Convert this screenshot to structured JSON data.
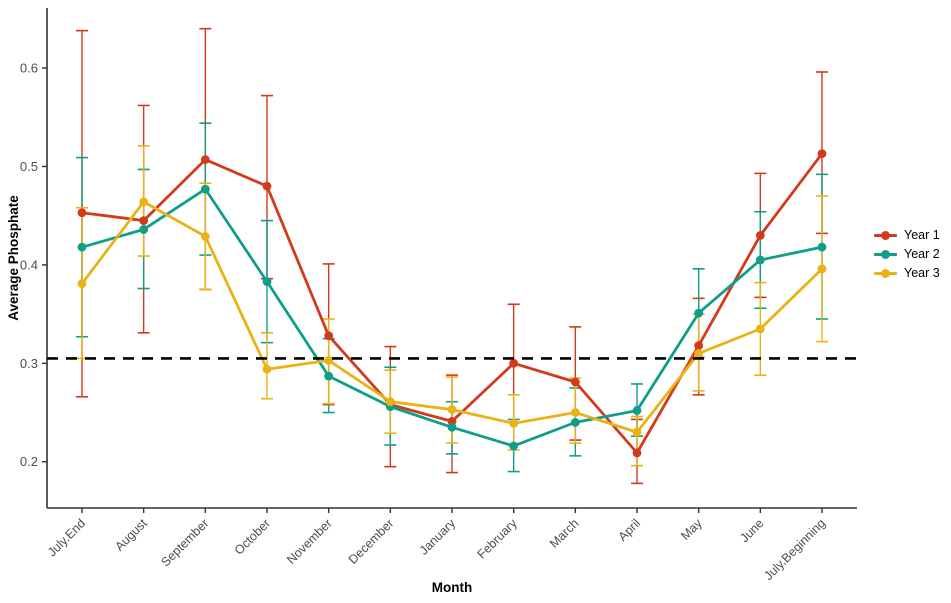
{
  "chart_data": {
    "type": "line",
    "title": "",
    "xlabel": "Month",
    "ylabel": "Average Phosphate",
    "categories": [
      "July.End",
      "August",
      "September",
      "October",
      "November",
      "December",
      "January",
      "February",
      "March",
      "April",
      "May",
      "June",
      "July.Beginning"
    ],
    "y_ticks": [
      0.2,
      0.3,
      0.4,
      0.5,
      0.6
    ],
    "ylim": [
      0.153,
      0.661
    ],
    "grid": false,
    "legend_position": "right",
    "reference_line": {
      "y": 0.305,
      "style": "dashed",
      "color": "#000000"
    },
    "axis_color": "#333333",
    "tick_label_color": "#4d4d4d",
    "series": [
      {
        "name": "Year 1",
        "color": "#d23a1c",
        "values": [
          0.453,
          0.445,
          0.507,
          0.48,
          0.328,
          0.258,
          0.241,
          0.3,
          0.281,
          0.209,
          0.318,
          0.43,
          0.513
        ],
        "err_low": [
          0.266,
          0.331,
          0.375,
          0.386,
          0.258,
          0.195,
          0.189,
          0.24,
          0.222,
          0.178,
          0.268,
          0.367,
          0.432
        ],
        "err_high": [
          0.638,
          0.562,
          0.64,
          0.572,
          0.401,
          0.317,
          0.288,
          0.36,
          0.337,
          0.243,
          0.366,
          0.493,
          0.596
        ]
      },
      {
        "name": "Year 2",
        "color": "#0e9e8a",
        "values": [
          0.418,
          0.436,
          0.477,
          0.383,
          0.287,
          0.256,
          0.235,
          0.216,
          0.24,
          0.252,
          0.351,
          0.405,
          0.418
        ],
        "err_low": [
          0.327,
          0.376,
          0.41,
          0.321,
          0.25,
          0.217,
          0.208,
          0.19,
          0.206,
          0.226,
          0.306,
          0.356,
          0.345
        ],
        "err_high": [
          0.509,
          0.497,
          0.544,
          0.445,
          0.325,
          0.296,
          0.261,
          0.243,
          0.275,
          0.279,
          0.396,
          0.454,
          0.492
        ]
      },
      {
        "name": "Year 3",
        "color": "#e9b318",
        "values": [
          0.381,
          0.464,
          0.429,
          0.294,
          0.303,
          0.261,
          0.253,
          0.239,
          0.25,
          0.23,
          0.31,
          0.335,
          0.396
        ],
        "err_low": [
          0.305,
          0.409,
          0.375,
          0.264,
          0.259,
          0.229,
          0.219,
          0.212,
          0.219,
          0.196,
          0.272,
          0.288,
          0.322
        ],
        "err_high": [
          0.458,
          0.521,
          0.483,
          0.331,
          0.345,
          0.293,
          0.286,
          0.268,
          0.285,
          0.246,
          0.35,
          0.382,
          0.47
        ]
      }
    ]
  }
}
